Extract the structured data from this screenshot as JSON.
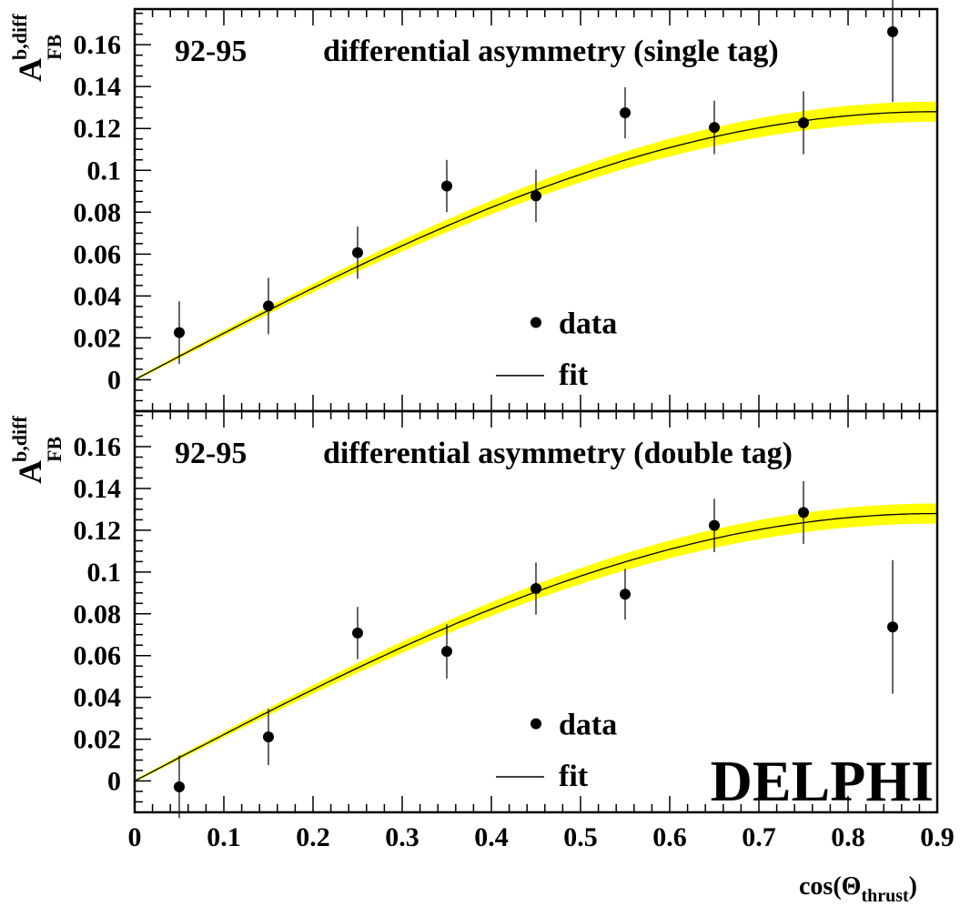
{
  "chart_data": [
    {
      "type": "scatter",
      "period_label": "92-95",
      "title": "differential asymmetry (single tag)",
      "ylabel": {
        "main": "A",
        "sup": "b,diff",
        "sub": "FB"
      },
      "ylim": [
        -0.015,
        0.177
      ],
      "xlim": [
        0,
        0.9
      ],
      "y_ticks": [
        "0",
        "0.02",
        "0.04",
        "0.06",
        "0.08",
        "0.1",
        "0.12",
        "0.14",
        "0.16"
      ],
      "legend": {
        "data_label": "data",
        "fit_label": "fit",
        "position": "center-right"
      },
      "series": [
        {
          "name": "data",
          "x": [
            0.05,
            0.15,
            0.25,
            0.35,
            0.45,
            0.55,
            0.65,
            0.75,
            0.85
          ],
          "y": [
            0.0225,
            0.0352,
            0.0607,
            0.0925,
            0.0878,
            0.1275,
            0.1205,
            0.1227,
            0.1662
          ],
          "err": [
            0.015,
            0.0135,
            0.0125,
            0.0125,
            0.0125,
            0.0122,
            0.0128,
            0.015,
            0.0335
          ]
        },
        {
          "name": "fit",
          "line": "sin",
          "amplitude": 0.128,
          "band": 0.0042,
          "band_color": "#ffff00"
        }
      ]
    },
    {
      "type": "scatter",
      "period_label": "92-95",
      "title": "differential asymmetry (double tag)",
      "ylabel": {
        "main": "A",
        "sup": "b,diff",
        "sub": "FB"
      },
      "ylim": [
        -0.015,
        0.177
      ],
      "xlim": [
        0,
        0.9
      ],
      "y_ticks": [
        "0",
        "0.02",
        "0.04",
        "0.06",
        "0.08",
        "0.1",
        "0.12",
        "0.14",
        "0.16"
      ],
      "x_ticks": [
        "0",
        "0.1",
        "0.2",
        "0.3",
        "0.4",
        "0.5",
        "0.6",
        "0.7",
        "0.8",
        "0.9"
      ],
      "xlabel": {
        "main": "cos(Θ",
        "sub": "thrust",
        "end": ")"
      },
      "legend": {
        "data_label": "data",
        "fit_label": "fit",
        "position": "center-right"
      },
      "series": [
        {
          "name": "data",
          "x": [
            0.05,
            0.15,
            0.25,
            0.35,
            0.45,
            0.55,
            0.65,
            0.75,
            0.85
          ],
          "y": [
            -0.0028,
            0.0211,
            0.0708,
            0.062,
            0.0921,
            0.0894,
            0.1223,
            0.1285,
            0.0737
          ],
          "err": [
            0.015,
            0.0135,
            0.0125,
            0.013,
            0.0125,
            0.0122,
            0.0128,
            0.015,
            0.032
          ]
        },
        {
          "name": "fit",
          "line": "sin",
          "amplitude": 0.128,
          "band": 0.0042,
          "band_color": "#ffff00"
        }
      ]
    }
  ],
  "logo": "DELPHI"
}
